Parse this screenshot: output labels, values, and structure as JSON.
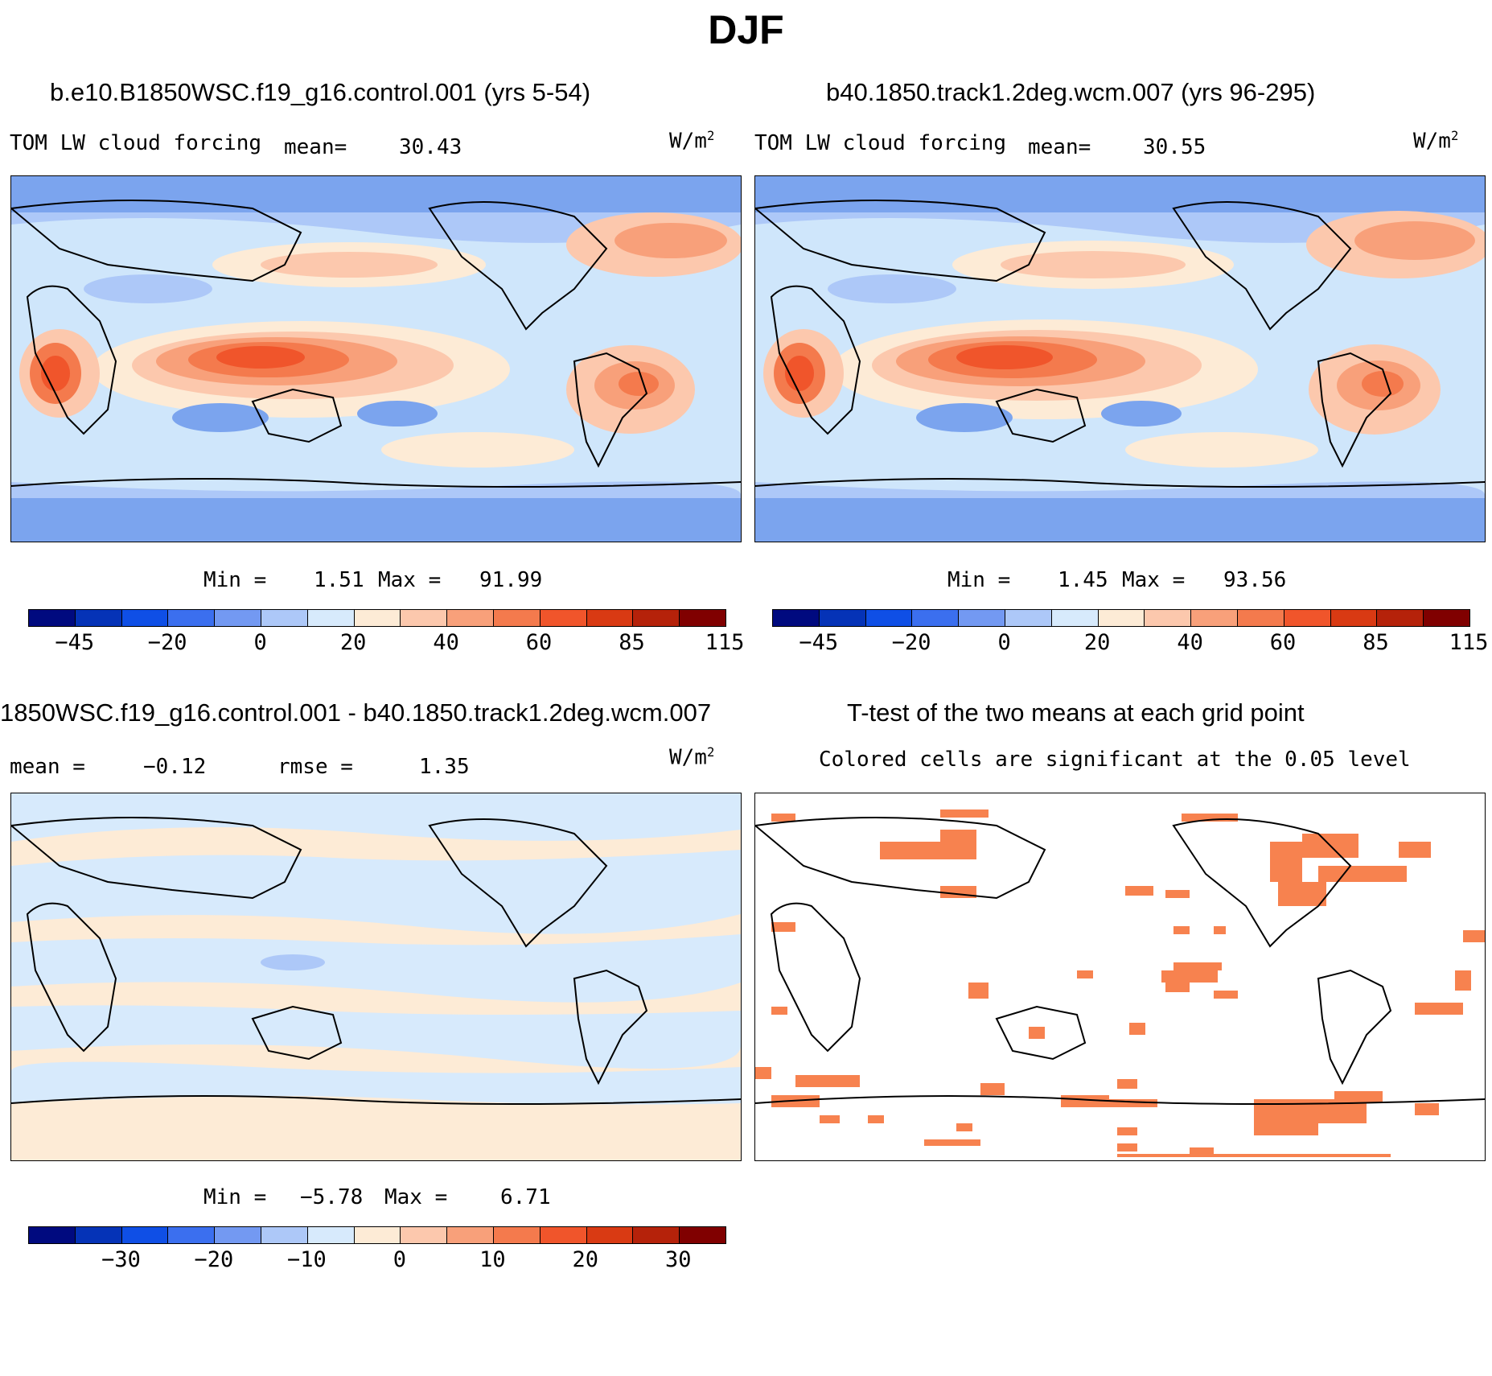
{
  "page_title": "DJF",
  "panels": {
    "top_left": {
      "title": "b.e10.B1850WSC.f19_g16.control.001 (yrs 5-54)",
      "variable": "TOM LW cloud forcing",
      "mean_label": "mean=",
      "mean_value": "30.43",
      "units_base": "W/m",
      "units_exp": "2",
      "min_label": "Min =",
      "min_value": "1.51",
      "max_label": "Max =",
      "max_value": "91.99"
    },
    "top_right": {
      "title": "b40.1850.track1.2deg.wcm.007 (yrs 96-295)",
      "variable": "TOM LW cloud forcing",
      "mean_label": "mean=",
      "mean_value": "30.55",
      "units_base": "W/m",
      "units_exp": "2",
      "min_label": "Min =",
      "min_value": "1.45",
      "max_label": "Max =",
      "max_value": "93.56"
    },
    "bottom_left": {
      "title": "1850WSC.f19_g16.control.001 - b40.1850.track1.2deg.wcm.007",
      "mean_label": "mean =",
      "mean_value": "−0.12",
      "rmse_label": "rmse =",
      "rmse_value": "1.35",
      "units_base": "W/m",
      "units_exp": "2",
      "min_label": "Min =",
      "min_value": "−5.78",
      "max_label": "Max =",
      "max_value": "6.71"
    },
    "bottom_right": {
      "title": "T-test of the two means at each grid point",
      "subtitle": "Colored cells are significant at the 0.05 level"
    }
  },
  "colorbars": {
    "field": {
      "colors": [
        "#000a7f",
        "#0533b7",
        "#0f4fe6",
        "#3b6fef",
        "#7399f2",
        "#adc8f8",
        "#d7eafc",
        "#fdebd6",
        "#fcc8ad",
        "#f8a07a",
        "#f47a4d",
        "#f0552b",
        "#d93a13",
        "#b5220a",
        "#800000"
      ],
      "tick_labels": [
        "−45",
        "−20",
        "0",
        "20",
        "40",
        "60",
        "85",
        "115"
      ]
    },
    "difference": {
      "colors": [
        "#000a7f",
        "#0533b7",
        "#0f4fe6",
        "#3b6fef",
        "#7399f2",
        "#adc8f8",
        "#d7eafc",
        "#fdebd6",
        "#fcc8ad",
        "#f8a07a",
        "#f47a4d",
        "#f0552b",
        "#d93a13",
        "#b5220a",
        "#800000"
      ],
      "tick_labels": [
        "−30",
        "−20",
        "−10",
        "0",
        "10",
        "20",
        "30"
      ]
    }
  },
  "significance_color": "#f7824f"
}
